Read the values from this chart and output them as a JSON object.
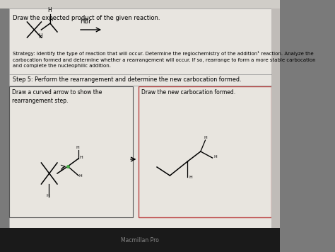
{
  "outer_bg": "#7a7a7a",
  "page_bg": "#e8e5e0",
  "inner_box_bg": "#e8e5df",
  "border_dark": "#555555",
  "border_red": "#bb4444",
  "title_text": "Draw the expected product of the given reaction.",
  "strategy_text": "Strategy: Identify the type of reaction that will occur. Determine the regiochemistry of the addition¹ reaction. Analyze the\ncarbocation formed and determine whether a rearrangement will occur. If so, rearrange to form a more stable carbocation\nand complete the nucleophilic addition.",
  "step5_text": "Step 5: Perform the rearrangement and determine the new carbocation formed.",
  "box1_label": "Draw a curved arrow to show the\nrearrangement step.",
  "box2_label": "Draw the new carbocation formed.",
  "reagent_text": "HBr",
  "footer_text": "Macmillan Pro",
  "top_bar_color": "#d0cdc8",
  "bottom_bar_color": "#1a1a1a"
}
